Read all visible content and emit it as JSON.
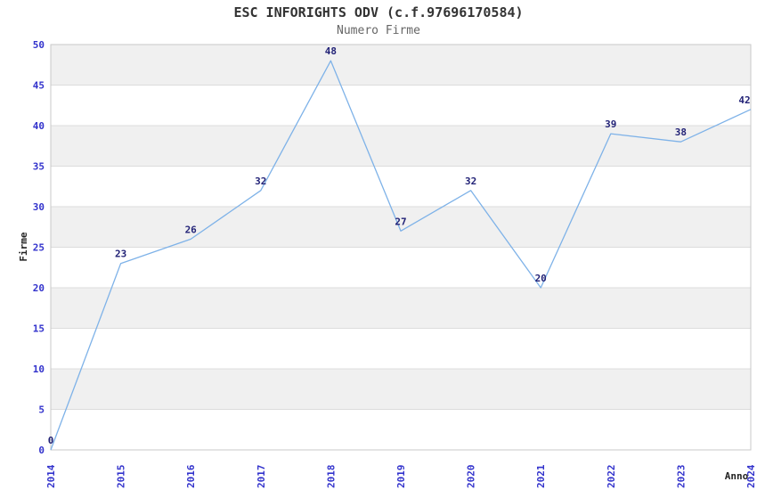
{
  "chart_data": {
    "type": "line",
    "title": "ESC INFORIGHTS ODV (c.f.97696170584)",
    "subtitle": "Numero Firme",
    "xlabel": "Anno",
    "ylabel": "Firme",
    "categories": [
      "2014",
      "2015",
      "2016",
      "2017",
      "2018",
      "2019",
      "2020",
      "2021",
      "2022",
      "2023",
      "2024"
    ],
    "values": [
      0,
      23,
      26,
      32,
      48,
      27,
      32,
      20,
      39,
      38,
      42
    ],
    "data_labels": [
      0,
      23,
      26,
      32,
      48,
      27,
      32,
      20,
      39,
      38,
      42
    ],
    "ylim": [
      0,
      50
    ],
    "ytick_step": 5,
    "yticks": [
      0,
      5,
      10,
      15,
      20,
      25,
      30,
      35,
      40,
      45,
      50
    ],
    "legend": "none",
    "grid": "horizontal gridlines with alternating gray/white bands every 5 units",
    "colors": {
      "line": "#7EB2E8",
      "band": "#F0F0F0",
      "grid_line": "#DCDCDC",
      "plot_border": "#C9C9C9",
      "tick_label": "#3333CC",
      "data_label": "#232377",
      "title": "#333333",
      "subtitle": "#666666",
      "axis_title": "#222222"
    }
  }
}
